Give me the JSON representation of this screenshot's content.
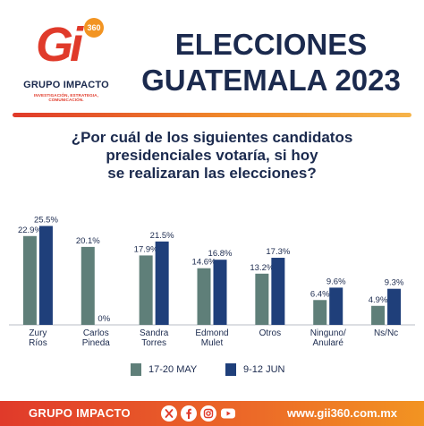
{
  "header": {
    "logo_mark": "Gi",
    "logo_badge": "360",
    "logo_name": "GRUPO IMPACTO",
    "logo_tagline": "INVESTIGACIÓN, ESTRATEGIA, COMUNICACIÓN.",
    "title_line1": "ELECCIONES",
    "title_line2": "GUATEMALA 2023"
  },
  "question": {
    "line1": "¿Por cuál de los siguientes candidatos",
    "line2": "presidenciales votaría, si hoy",
    "line3": "se realizaran las elecciones?"
  },
  "chart_data": {
    "type": "bar",
    "categories": [
      [
        "Zury",
        "Ríos"
      ],
      [
        "Carlos",
        "Pineda"
      ],
      [
        "Sandra",
        "Torres"
      ],
      [
        "Edmond",
        "Mulet"
      ],
      [
        "Otros"
      ],
      [
        "Ninguno/",
        "Anularé"
      ],
      [
        "Ns/Nc"
      ]
    ],
    "series": [
      {
        "name": "17-20 MAY",
        "values": [
          22.9,
          20.1,
          17.9,
          14.6,
          13.2,
          6.4,
          4.9
        ],
        "labels": [
          "22.9%",
          "20.1%",
          "17.9%",
          "14.6%",
          "13.2%",
          "6.4%",
          "4.9%"
        ],
        "color": "#5f7f79"
      },
      {
        "name": "9-12 JUN",
        "values": [
          25.5,
          0,
          21.5,
          16.8,
          17.3,
          9.6,
          9.3
        ],
        "labels": [
          "25.5%",
          "0%",
          "21.5%",
          "16.8%",
          "17.3%",
          "9.6%",
          "9.3%"
        ],
        "color": "#1f3f7a"
      }
    ],
    "title": "",
    "xlabel": "",
    "ylabel": "",
    "ylim": [
      0,
      27
    ]
  },
  "colors": {
    "navy": "#1b2a4e",
    "accent_red": "#e03a2a",
    "accent_orange": "#f29422"
  },
  "footer": {
    "brand": "GRUPO IMPACTO",
    "social_icons": [
      "x-icon",
      "facebook-icon",
      "instagram-icon",
      "youtube-icon"
    ],
    "url": "www.gii360.com.mx"
  }
}
